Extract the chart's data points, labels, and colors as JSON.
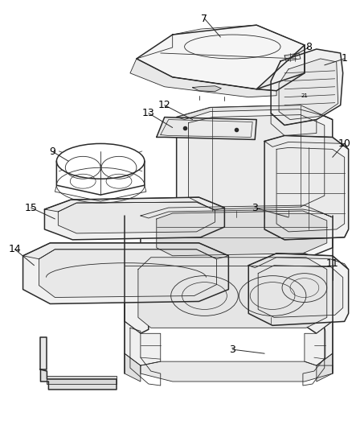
{
  "background_color": "#ffffff",
  "line_color": "#2a2a2a",
  "label_color": "#000000",
  "figsize": [
    4.38,
    5.33
  ],
  "dpi": 100,
  "lw_main": 1.1,
  "lw_thin": 0.6,
  "lw_label": 0.7
}
